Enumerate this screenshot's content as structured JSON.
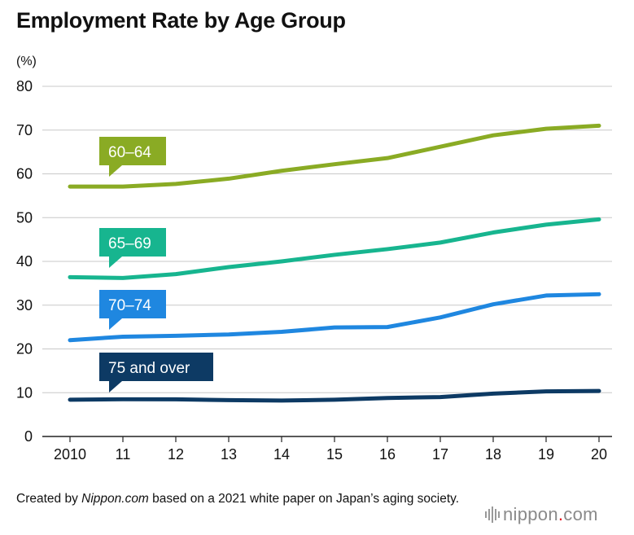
{
  "title": "Employment Rate by Age Group",
  "footer": {
    "prefix": "Created by ",
    "italic": "Nippon.com",
    "suffix": " based on a 2021 white paper on Japan’s aging society."
  },
  "logo": {
    "name": "nippon",
    "dot": ".",
    "tld": "com"
  },
  "chart_data": {
    "type": "line",
    "unit_label": "(%)",
    "categories": [
      "2010",
      "11",
      "12",
      "13",
      "14",
      "15",
      "16",
      "17",
      "18",
      "19",
      "20"
    ],
    "ylim": [
      0,
      80
    ],
    "yticks": [
      "0",
      "10",
      "20",
      "30",
      "40",
      "50",
      "60",
      "70",
      "80"
    ],
    "grid": true,
    "series": [
      {
        "name": "60–64",
        "color": "#8aab24",
        "values": [
          57.1,
          57.1,
          57.7,
          58.9,
          60.7,
          62.2,
          63.6,
          66.2,
          68.8,
          70.3,
          71.0
        ]
      },
      {
        "name": "65–69",
        "color": "#17b58f",
        "values": [
          36.4,
          36.2,
          37.1,
          38.7,
          40.0,
          41.5,
          42.8,
          44.3,
          46.6,
          48.4,
          49.6
        ]
      },
      {
        "name": "70–74",
        "color": "#1f87e0",
        "values": [
          22.0,
          22.8,
          23.0,
          23.3,
          23.9,
          24.9,
          25.0,
          27.2,
          30.2,
          32.2,
          32.5
        ]
      },
      {
        "name": "75 and over",
        "color": "#0d3a64",
        "values": [
          8.4,
          8.5,
          8.5,
          8.3,
          8.2,
          8.4,
          8.8,
          9.0,
          9.8,
          10.3,
          10.4
        ]
      }
    ]
  }
}
